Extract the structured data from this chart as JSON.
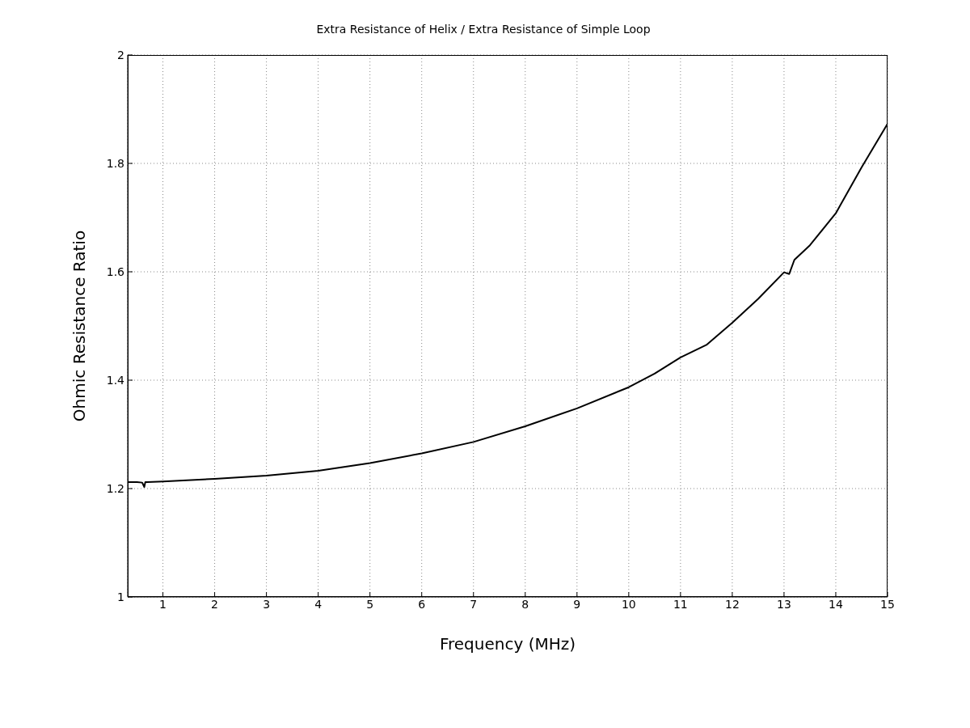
{
  "chart_data": {
    "type": "line",
    "title": "Extra Resistance of Helix / Extra Resistance of Simple Loop",
    "xlabel": "Frequency (MHz)",
    "ylabel": "Ohmic Resistance Ratio",
    "x": [
      0.32,
      0.5,
      0.6,
      0.64,
      0.66,
      0.7,
      1,
      2,
      3,
      4,
      5,
      6,
      7,
      8,
      9,
      10,
      10.5,
      11,
      11.5,
      12,
      12.5,
      13,
      13.1,
      13.2,
      13.5,
      14,
      14.5,
      15
    ],
    "series": [
      {
        "color": "#000000",
        "values": [
          1.212,
          1.212,
          1.211,
          1.203,
          1.212,
          1.212,
          1.213,
          1.218,
          1.224,
          1.233,
          1.247,
          1.265,
          1.286,
          1.315,
          1.348,
          1.387,
          1.412,
          1.442,
          1.465,
          1.506,
          1.55,
          1.599,
          1.596,
          1.622,
          1.649,
          1.708,
          1.793,
          1.873
        ]
      }
    ],
    "xlim": [
      0.32,
      15
    ],
    "xticks": [
      1,
      2,
      3,
      4,
      5,
      6,
      7,
      8,
      9,
      10,
      11,
      12,
      13,
      14,
      15
    ],
    "ylim": [
      1,
      2
    ],
    "yticks": [
      1,
      1.2,
      1.4,
      1.6,
      1.8,
      2
    ],
    "grid": true,
    "legend": false
  }
}
